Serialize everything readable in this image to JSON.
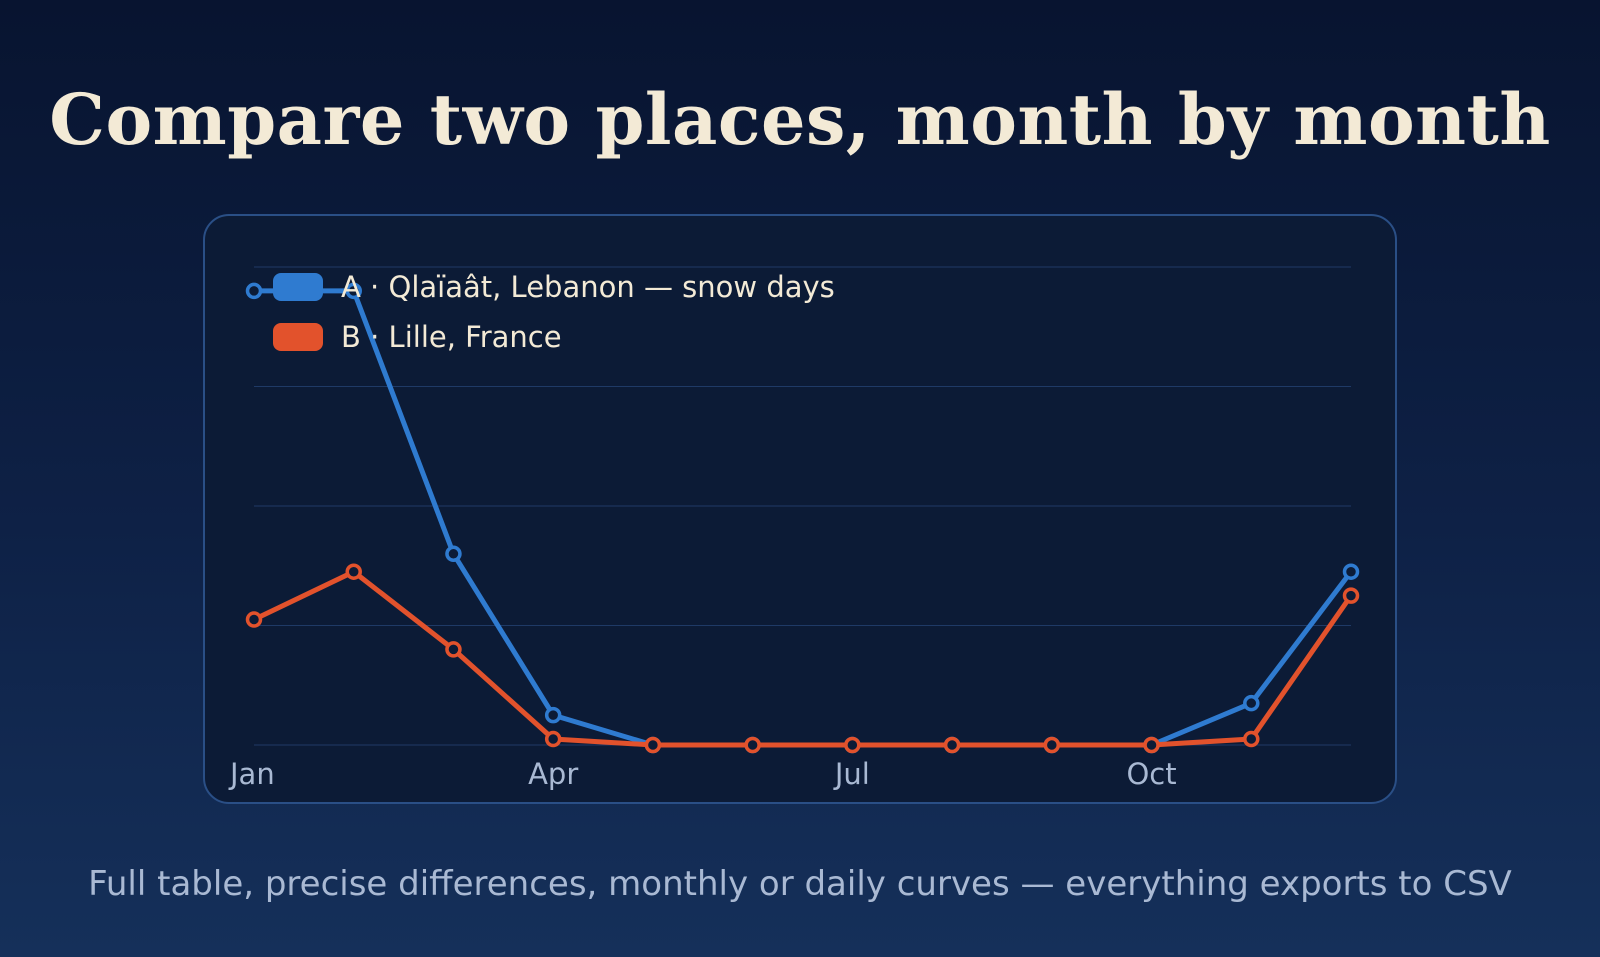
{
  "title": "Compare two places, month by month",
  "subtitle": "Full table, precise differences, monthly or daily curves — everything exports to CSV",
  "chart_data": {
    "type": "line",
    "x": [
      "Jan",
      "Feb",
      "Mar",
      "Apr",
      "May",
      "Jun",
      "Jul",
      "Aug",
      "Sep",
      "Oct",
      "Nov",
      "Dec"
    ],
    "x_tick_labels": [
      "Jan",
      "Apr",
      "Jul",
      "Oct"
    ],
    "ylim": [
      0,
      8
    ],
    "grid": true,
    "legend_position": "top-left",
    "series": [
      {
        "name": "A · Qlaïaât, Lebanon — snow days",
        "color": "#2f7bd0",
        "values": [
          7.6,
          7.6,
          3.2,
          0.5,
          0,
          0,
          0,
          0,
          0,
          0,
          0.7,
          2.9
        ]
      },
      {
        "name": "B · Lille, France",
        "color": "#e2522c",
        "values": [
          2.1,
          2.9,
          1.6,
          0.1,
          0,
          0,
          0,
          0,
          0,
          0,
          0.1,
          2.5
        ]
      }
    ]
  }
}
